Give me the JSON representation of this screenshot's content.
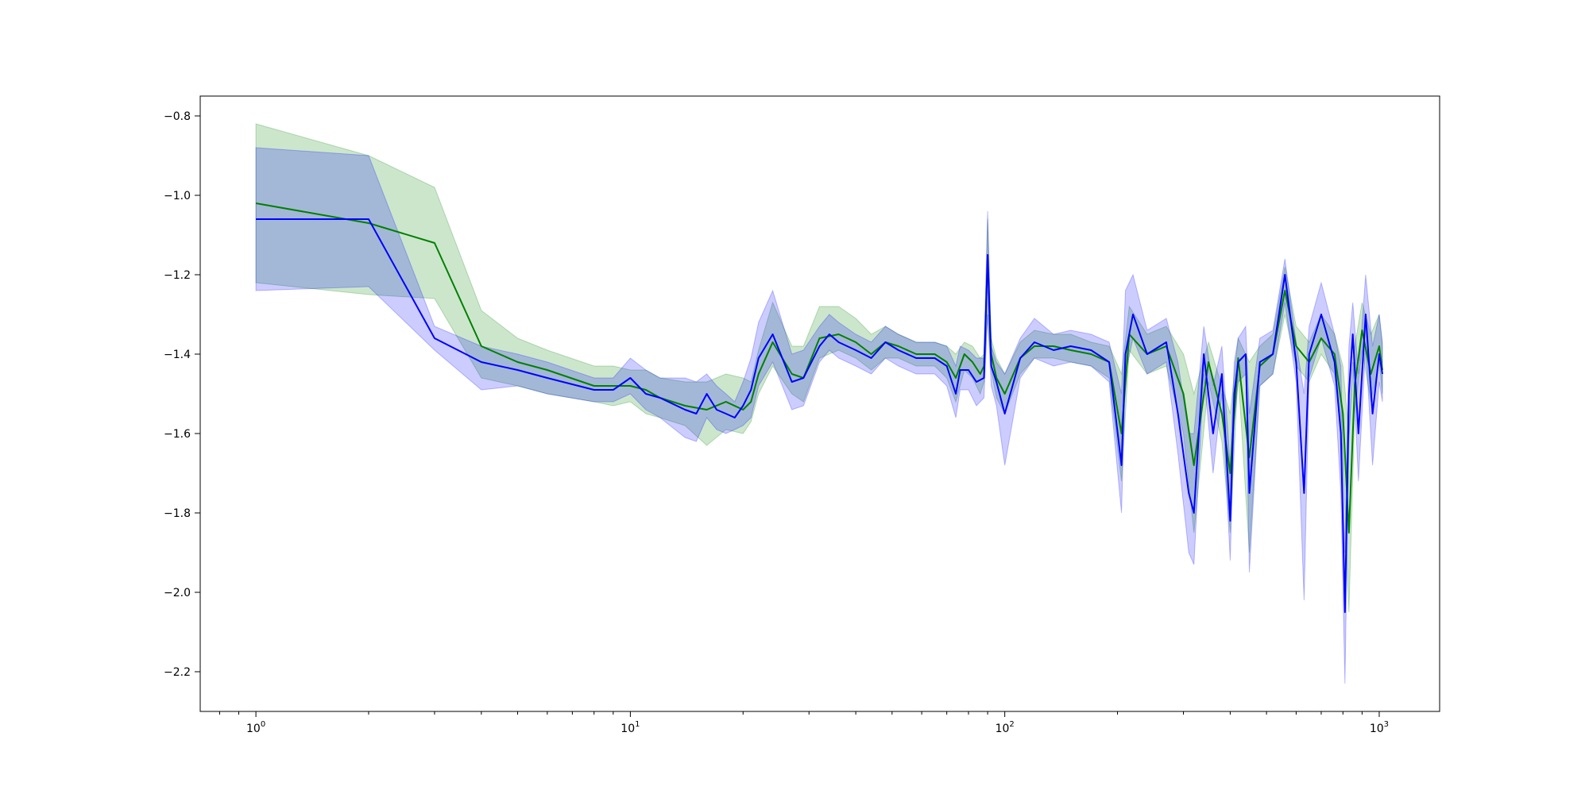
{
  "chart_data": {
    "type": "line",
    "title": "",
    "xlabel": "",
    "ylabel": "",
    "x_scale": "log",
    "xlim": [
      0.71,
      1450
    ],
    "ylim": [
      -2.3,
      -0.75
    ],
    "grid": false,
    "legend": "none",
    "x_ticks": [
      {
        "value": 1,
        "label_base": "10",
        "label_exp": "0"
      },
      {
        "value": 10,
        "label_base": "10",
        "label_exp": "1"
      },
      {
        "value": 100,
        "label_base": "10",
        "label_exp": "2"
      },
      {
        "value": 1000,
        "label_base": "10",
        "label_exp": "3"
      }
    ],
    "y_ticks": [
      {
        "value": -0.8,
        "label": "−0.8"
      },
      {
        "value": -1.0,
        "label": "−1.0"
      },
      {
        "value": -1.2,
        "label": "−1.2"
      },
      {
        "value": -1.4,
        "label": "−1.4"
      },
      {
        "value": -1.6,
        "label": "−1.6"
      },
      {
        "value": -1.8,
        "label": "−1.8"
      },
      {
        "value": -2.0,
        "label": "−2.0"
      },
      {
        "value": -2.2,
        "label": "−2.2"
      }
    ],
    "series": [
      {
        "color": "#008000",
        "band_color": "#008000",
        "band_opacity": 0.2,
        "x": [
          1,
          2,
          3,
          4,
          5,
          6,
          8,
          9,
          10,
          11,
          12,
          14,
          16,
          18,
          20,
          21,
          22,
          24,
          27,
          29,
          32,
          36,
          40,
          44,
          48,
          52,
          58,
          65,
          70,
          74,
          78,
          82,
          86,
          88,
          90,
          92,
          95,
          100,
          110,
          120,
          135,
          150,
          170,
          190,
          205,
          215,
          240,
          270,
          300,
          320,
          350,
          380,
          400,
          420,
          450,
          480,
          520,
          560,
          600,
          650,
          700,
          760,
          800,
          830,
          860,
          900,
          950,
          1000,
          1020
        ],
        "y": [
          -1.02,
          -1.07,
          -1.12,
          -1.38,
          -1.42,
          -1.44,
          -1.48,
          -1.48,
          -1.48,
          -1.49,
          -1.51,
          -1.53,
          -1.54,
          -1.52,
          -1.54,
          -1.52,
          -1.45,
          -1.37,
          -1.45,
          -1.46,
          -1.36,
          -1.35,
          -1.37,
          -1.4,
          -1.37,
          -1.38,
          -1.4,
          -1.4,
          -1.42,
          -1.46,
          -1.4,
          -1.42,
          -1.45,
          -1.43,
          -1.16,
          -1.4,
          -1.46,
          -1.5,
          -1.41,
          -1.38,
          -1.38,
          -1.39,
          -1.4,
          -1.42,
          -1.6,
          -1.35,
          -1.4,
          -1.38,
          -1.5,
          -1.68,
          -1.42,
          -1.55,
          -1.7,
          -1.41,
          -1.66,
          -1.43,
          -1.4,
          -1.24,
          -1.38,
          -1.42,
          -1.36,
          -1.4,
          -1.55,
          -1.85,
          -1.48,
          -1.34,
          -1.45,
          -1.38,
          -1.44
        ],
        "lower": [
          -1.22,
          -1.25,
          -1.26,
          -1.46,
          -1.48,
          -1.5,
          -1.52,
          -1.53,
          -1.52,
          -1.55,
          -1.56,
          -1.58,
          -1.63,
          -1.59,
          -1.6,
          -1.57,
          -1.5,
          -1.43,
          -1.5,
          -1.52,
          -1.41,
          -1.39,
          -1.41,
          -1.44,
          -1.41,
          -1.41,
          -1.43,
          -1.43,
          -1.46,
          -1.52,
          -1.44,
          -1.46,
          -1.5,
          -1.47,
          -1.3,
          -1.44,
          -1.51,
          -1.55,
          -1.45,
          -1.41,
          -1.41,
          -1.42,
          -1.43,
          -1.46,
          -1.72,
          -1.39,
          -1.45,
          -1.43,
          -1.6,
          -1.85,
          -1.47,
          -1.62,
          -1.85,
          -1.45,
          -1.9,
          -1.48,
          -1.45,
          -1.3,
          -1.43,
          -1.47,
          -1.4,
          -1.45,
          -1.65,
          -2.05,
          -1.55,
          -1.39,
          -1.52,
          -1.42,
          -1.5
        ],
        "upper": [
          -0.82,
          -0.9,
          -0.98,
          -1.29,
          -1.36,
          -1.39,
          -1.43,
          -1.43,
          -1.44,
          -1.44,
          -1.46,
          -1.47,
          -1.47,
          -1.45,
          -1.46,
          -1.47,
          -1.39,
          -1.27,
          -1.38,
          -1.38,
          -1.28,
          -1.28,
          -1.31,
          -1.35,
          -1.33,
          -1.35,
          -1.37,
          -1.37,
          -1.38,
          -1.4,
          -1.37,
          -1.38,
          -1.41,
          -1.4,
          -1.06,
          -1.36,
          -1.41,
          -1.45,
          -1.37,
          -1.34,
          -1.35,
          -1.35,
          -1.37,
          -1.38,
          -1.45,
          -1.28,
          -1.35,
          -1.33,
          -1.4,
          -1.5,
          -1.37,
          -1.48,
          -1.55,
          -1.36,
          -1.42,
          -1.38,
          -1.35,
          -1.18,
          -1.33,
          -1.37,
          -1.3,
          -1.35,
          -1.43,
          -1.6,
          -1.38,
          -1.27,
          -1.35,
          -1.3,
          -1.38
        ]
      },
      {
        "color": "#0000ff",
        "band_color": "#0000ff",
        "band_opacity": 0.2,
        "x": [
          1,
          2,
          3,
          4,
          5,
          6,
          8,
          9,
          10,
          11,
          12,
          14,
          15,
          16,
          17,
          18,
          19,
          20,
          21,
          22,
          24,
          27,
          29,
          32,
          34,
          36,
          40,
          44,
          48,
          52,
          58,
          65,
          70,
          74,
          76,
          80,
          84,
          88,
          90,
          92,
          95,
          100,
          110,
          120,
          135,
          150,
          170,
          190,
          205,
          210,
          220,
          240,
          270,
          290,
          310,
          320,
          340,
          360,
          380,
          400,
          410,
          420,
          440,
          450,
          480,
          520,
          560,
          600,
          630,
          650,
          700,
          760,
          790,
          810,
          830,
          850,
          880,
          920,
          960,
          1000,
          1020
        ],
        "y": [
          -1.06,
          -1.06,
          -1.36,
          -1.42,
          -1.44,
          -1.46,
          -1.49,
          -1.49,
          -1.46,
          -1.5,
          -1.51,
          -1.54,
          -1.55,
          -1.5,
          -1.54,
          -1.55,
          -1.56,
          -1.53,
          -1.49,
          -1.41,
          -1.35,
          -1.47,
          -1.46,
          -1.38,
          -1.35,
          -1.37,
          -1.39,
          -1.41,
          -1.37,
          -1.39,
          -1.41,
          -1.41,
          -1.43,
          -1.5,
          -1.44,
          -1.44,
          -1.47,
          -1.46,
          -1.15,
          -1.43,
          -1.47,
          -1.55,
          -1.41,
          -1.37,
          -1.39,
          -1.38,
          -1.39,
          -1.42,
          -1.68,
          -1.4,
          -1.3,
          -1.4,
          -1.37,
          -1.55,
          -1.75,
          -1.8,
          -1.4,
          -1.6,
          -1.45,
          -1.82,
          -1.5,
          -1.42,
          -1.4,
          -1.75,
          -1.42,
          -1.4,
          -1.2,
          -1.42,
          -1.75,
          -1.4,
          -1.3,
          -1.42,
          -1.6,
          -2.05,
          -1.5,
          -1.35,
          -1.6,
          -1.3,
          -1.55,
          -1.4,
          -1.45
        ],
        "lower": [
          -1.24,
          -1.23,
          -1.39,
          -1.49,
          -1.48,
          -1.5,
          -1.52,
          -1.52,
          -1.5,
          -1.54,
          -1.56,
          -1.61,
          -1.62,
          -1.56,
          -1.59,
          -1.6,
          -1.59,
          -1.58,
          -1.56,
          -1.48,
          -1.42,
          -1.54,
          -1.53,
          -1.42,
          -1.39,
          -1.41,
          -1.43,
          -1.45,
          -1.41,
          -1.43,
          -1.45,
          -1.45,
          -1.48,
          -1.56,
          -1.49,
          -1.49,
          -1.53,
          -1.51,
          -1.3,
          -1.48,
          -1.53,
          -1.68,
          -1.46,
          -1.41,
          -1.43,
          -1.42,
          -1.43,
          -1.47,
          -1.8,
          -1.45,
          -1.36,
          -1.45,
          -1.42,
          -1.65,
          -1.9,
          -1.93,
          -1.45,
          -1.7,
          -1.5,
          -1.92,
          -1.57,
          -1.47,
          -1.45,
          -1.95,
          -1.48,
          -1.45,
          -1.27,
          -1.47,
          -2.02,
          -1.46,
          -1.36,
          -1.48,
          -1.75,
          -2.23,
          -1.62,
          -1.42,
          -1.72,
          -1.38,
          -1.68,
          -1.47,
          -1.52
        ],
        "upper": [
          -0.88,
          -0.9,
          -1.33,
          -1.38,
          -1.4,
          -1.42,
          -1.46,
          -1.46,
          -1.41,
          -1.44,
          -1.46,
          -1.46,
          -1.47,
          -1.45,
          -1.48,
          -1.5,
          -1.52,
          -1.47,
          -1.41,
          -1.32,
          -1.24,
          -1.4,
          -1.39,
          -1.33,
          -1.3,
          -1.32,
          -1.35,
          -1.37,
          -1.33,
          -1.35,
          -1.37,
          -1.37,
          -1.38,
          -1.43,
          -1.38,
          -1.39,
          -1.41,
          -1.41,
          -1.04,
          -1.38,
          -1.42,
          -1.45,
          -1.36,
          -1.31,
          -1.35,
          -1.34,
          -1.35,
          -1.37,
          -1.5,
          -1.24,
          -1.2,
          -1.34,
          -1.31,
          -1.42,
          -1.6,
          -1.6,
          -1.33,
          -1.48,
          -1.38,
          -1.68,
          -1.42,
          -1.36,
          -1.33,
          -1.55,
          -1.36,
          -1.34,
          -1.16,
          -1.37,
          -1.5,
          -1.33,
          -1.22,
          -1.35,
          -1.43,
          -1.9,
          -1.38,
          -1.27,
          -1.45,
          -1.2,
          -1.38,
          -1.3,
          -1.37
        ]
      }
    ]
  }
}
